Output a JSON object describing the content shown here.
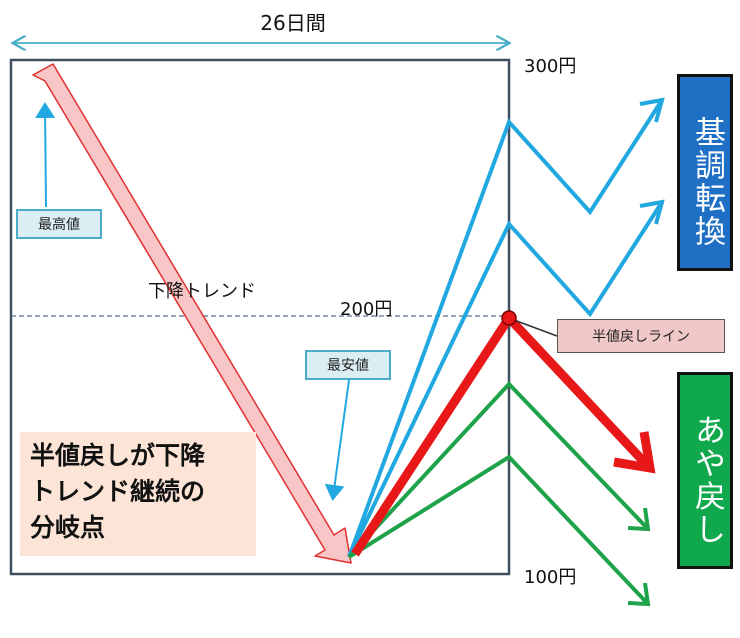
{
  "top_span_label": "26日間",
  "price_labels": {
    "high": "300円",
    "mid": "200円",
    "low": "100円"
  },
  "trend_label": "下降トレンド",
  "callouts": {
    "max": "最高値",
    "min": "最安値",
    "half_line": "半値戻しライン"
  },
  "note_lines": [
    "半値戻しが下降",
    "トレンド継続の",
    "分岐点"
  ],
  "side_boxes": {
    "reversal": "基調転換",
    "rebound": "あや戻し"
  },
  "colors": {
    "frame": "#3f4f5f",
    "trend_arrow_fill": "#f8c6c6",
    "trend_arrow_stroke": "#e03030",
    "blue": "#22a8e0",
    "green": "#1fa34a",
    "red": "#e81818",
    "half_line_dash": "#5a6f86",
    "callout_fill": "#dbeef4",
    "callout_border": "#4aacc6",
    "half_label_fill": "#f0c8c8",
    "note_fill": "#fce5d6",
    "reversal_fill": "#1f6fc5",
    "rebound_fill": "#10a84c"
  }
}
